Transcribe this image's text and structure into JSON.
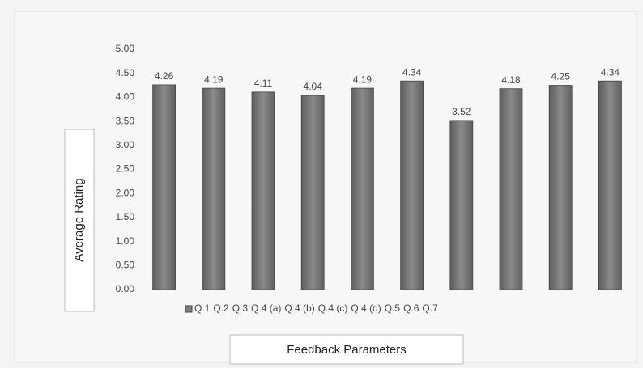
{
  "chart_data": {
    "type": "bar",
    "categories": [
      "Q.1",
      "Q.2",
      "Q.3",
      "Q.4 (a)",
      "Q.4 (b)",
      "Q.4 (c)",
      "Q.4 (d)",
      "Q.5",
      "Q.6",
      "Q.7"
    ],
    "values": [
      4.26,
      4.19,
      4.11,
      4.04,
      4.19,
      4.34,
      3.52,
      4.18,
      4.25,
      4.34
    ],
    "color": "#7b7b7b",
    "y_label": "Average Rating",
    "x_label": "Feedback Parameters",
    "ylim": [
      0,
      5
    ],
    "yticks": [
      {
        "value": 0,
        "label": "0.00"
      },
      {
        "value": 0.5,
        "label": "0.50"
      },
      {
        "value": 1,
        "label": "1.00"
      },
      {
        "value": 1.5,
        "label": "1.50"
      },
      {
        "value": 2,
        "label": "2.00"
      },
      {
        "value": 2.5,
        "label": "2.50"
      },
      {
        "value": 3,
        "label": "3.00"
      },
      {
        "value": 3.5,
        "label": "3.50"
      },
      {
        "value": 4,
        "label": "4.00"
      },
      {
        "value": 4.5,
        "label": "4.50"
      },
      {
        "value": 5,
        "label": "5.00"
      }
    ],
    "grid": false,
    "legend": "bottom"
  }
}
